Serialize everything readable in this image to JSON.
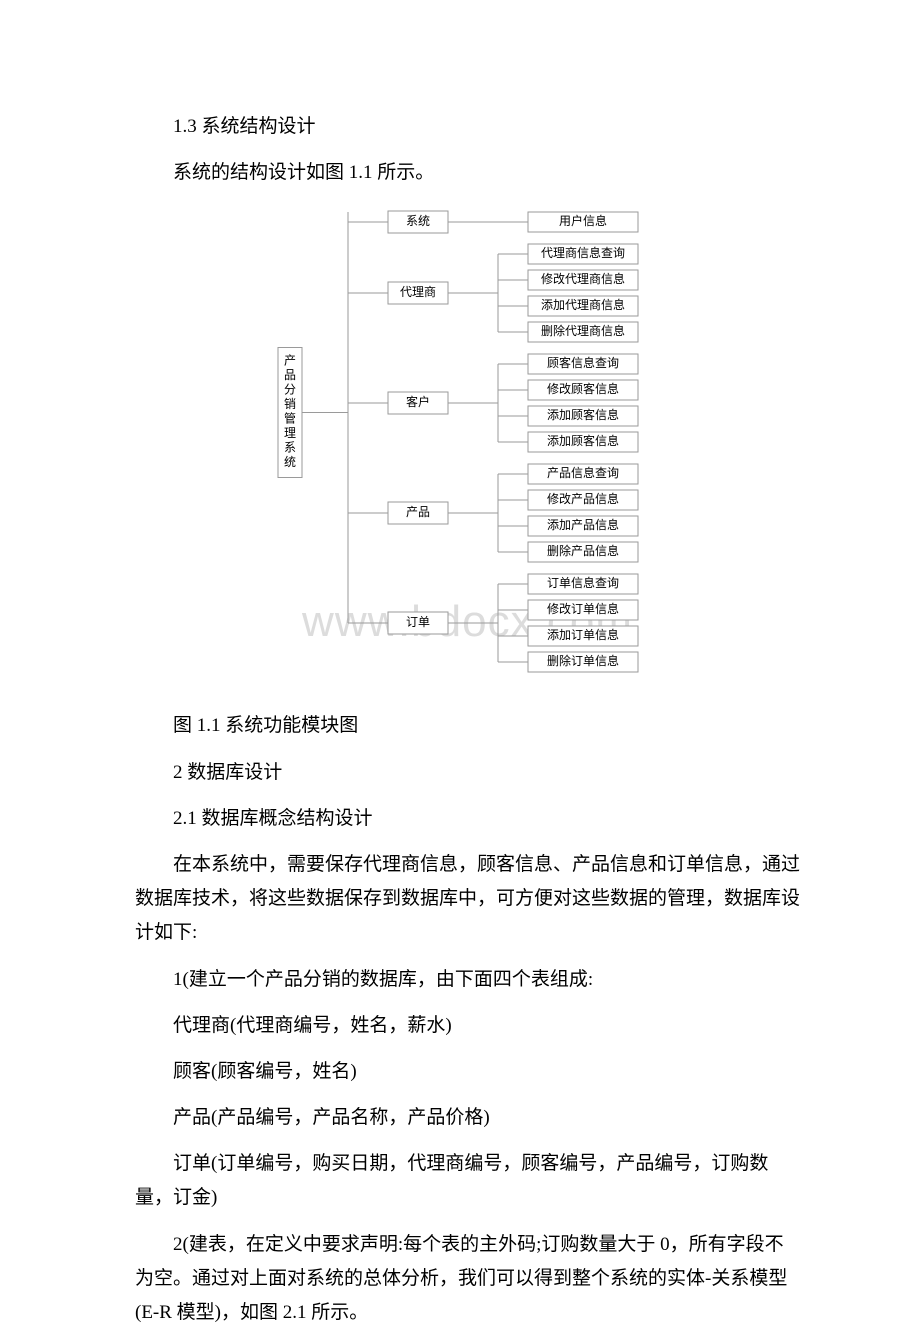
{
  "section1_3_title": "1.3 系统结构设计",
  "section1_3_text": "系统的结构设计如图 1.1 所示。",
  "figure_caption": "图 1.1 系统功能模块图",
  "section2_title": "2 数据库设计",
  "section2_1_title": "2.1 数据库概念结构设计",
  "section2_1_text": "在本系统中，需要保存代理商信息，顾客信息、产品信息和订单信息，通过数据库技术，将这些数据保存到数据库中，可方便对这些数据的管理，数据库设计如下:",
  "db_intro": "1(建立一个产品分销的数据库，由下面四个表组成:",
  "table1": "代理商(代理商编号，姓名，薪水)",
  "table2": "顾客(顾客编号，姓名)",
  "table3": "产品(产品编号，产品名称，产品价格)",
  "table4": "订单(订单编号，购买日期，代理商编号，顾客编号，产品编号，订购数量，订金)",
  "section2_2_text": "2(建表，在定义中要求声明:每个表的主外码;订购数量大于 0，所有字段不为空。通过对上面对系统的总体分析，我们可以得到整个系统的实体-关系模型(E-R 模型)，如图 2.1 所示。",
  "watermark": "www.bdocx.com",
  "diagram": {
    "type": "tree",
    "root": "产品分销管理系统",
    "nodes": {
      "system": {
        "label": "系统",
        "children": [
          "用户信息"
        ]
      },
      "agent": {
        "label": "代理商",
        "children": [
          "代理商信息查询",
          "修改代理商信息",
          "添加代理商信息",
          "删除代理商信息"
        ]
      },
      "customer": {
        "label": "客户",
        "children": [
          "顾客信息查询",
          "修改顾客信息",
          "添加顾客信息",
          "添加顾客信息"
        ]
      },
      "product": {
        "label": "产品",
        "children": [
          "产品信息查询",
          "修改产品信息",
          "添加产品信息",
          "删除产品信息"
        ]
      },
      "order": {
        "label": "订单",
        "children": [
          "订单信息查询",
          "修改订单信息",
          "添加订单信息",
          "删除订单信息"
        ]
      }
    },
    "box_stroke": "#9a9a9a",
    "box_fill": "#ffffff",
    "text_color": "#000000",
    "font_size": 12,
    "line_color": "#9a9a9a",
    "line_width": 1
  }
}
